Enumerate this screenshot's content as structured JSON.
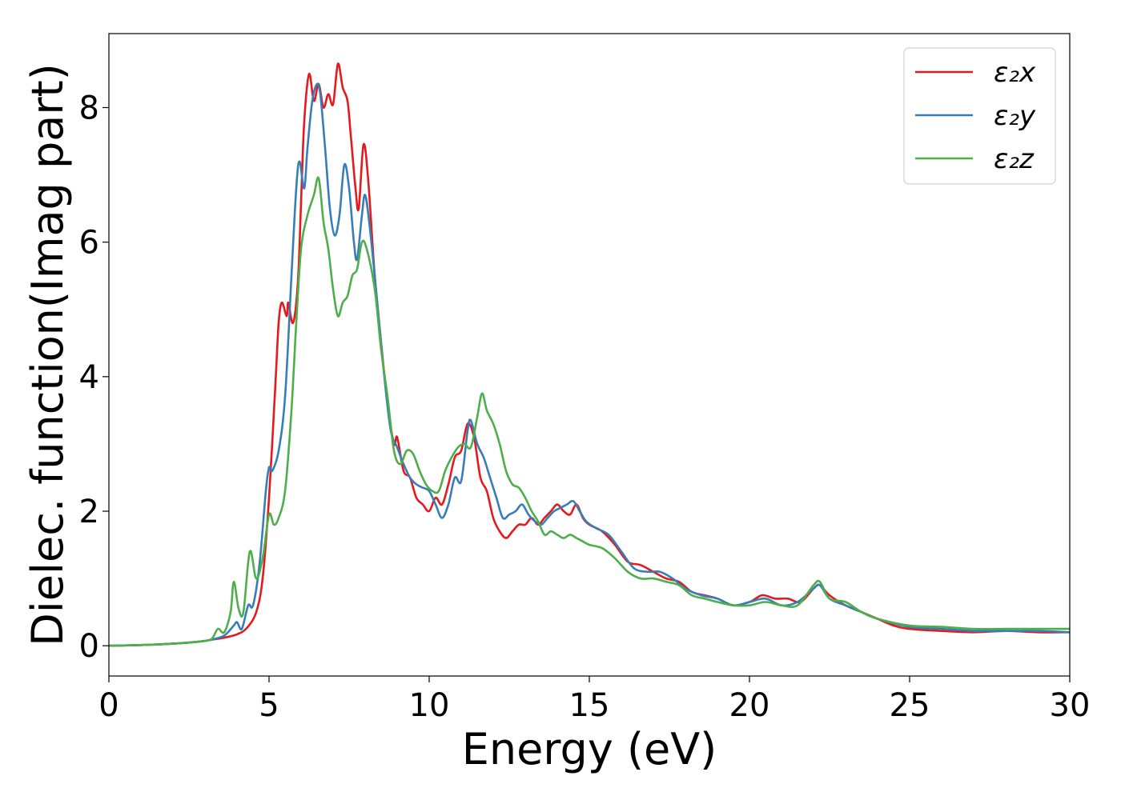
{
  "chart_data": {
    "type": "line",
    "title": "",
    "xlabel": "Energy (eV)",
    "ylabel": "Dielec. function(Imag part)",
    "xlim": [
      0,
      30
    ],
    "ylim": [
      -0.45,
      9.1
    ],
    "xticks": [
      0,
      5,
      10,
      15,
      20,
      25,
      30
    ],
    "yticks": [
      0,
      2,
      4,
      6,
      8
    ],
    "grid": false,
    "legend_position": "top-right",
    "series": [
      {
        "name": "ε₂x",
        "color": "#e41a1c",
        "points": [
          [
            0,
            0.0
          ],
          [
            1,
            0.01
          ],
          [
            2,
            0.03
          ],
          [
            2.8,
            0.06
          ],
          [
            3.2,
            0.09
          ],
          [
            3.6,
            0.12
          ],
          [
            4.0,
            0.17
          ],
          [
            4.3,
            0.26
          ],
          [
            4.6,
            0.5
          ],
          [
            4.8,
            1.0
          ],
          [
            5.0,
            2.2
          ],
          [
            5.2,
            3.9
          ],
          [
            5.3,
            4.8
          ],
          [
            5.4,
            5.1
          ],
          [
            5.55,
            4.9
          ],
          [
            5.6,
            5.1
          ],
          [
            5.75,
            4.8
          ],
          [
            5.9,
            5.4
          ],
          [
            6.0,
            6.6
          ],
          [
            6.1,
            7.8
          ],
          [
            6.25,
            8.5
          ],
          [
            6.4,
            8.1
          ],
          [
            6.55,
            8.35
          ],
          [
            6.7,
            8.0
          ],
          [
            6.85,
            8.2
          ],
          [
            7.0,
            8.05
          ],
          [
            7.15,
            8.65
          ],
          [
            7.3,
            8.3
          ],
          [
            7.45,
            8.1
          ],
          [
            7.55,
            7.6
          ],
          [
            7.7,
            6.8
          ],
          [
            7.8,
            6.5
          ],
          [
            7.95,
            7.45
          ],
          [
            8.1,
            6.9
          ],
          [
            8.3,
            5.5
          ],
          [
            8.5,
            4.5
          ],
          [
            8.7,
            3.6
          ],
          [
            8.9,
            3.0
          ],
          [
            9.0,
            3.1
          ],
          [
            9.2,
            2.6
          ],
          [
            9.4,
            2.5
          ],
          [
            9.6,
            2.2
          ],
          [
            9.8,
            2.1
          ],
          [
            10.0,
            2.0
          ],
          [
            10.2,
            2.2
          ],
          [
            10.4,
            2.1
          ],
          [
            10.6,
            2.4
          ],
          [
            10.8,
            2.8
          ],
          [
            11.0,
            2.9
          ],
          [
            11.2,
            3.3
          ],
          [
            11.4,
            3.1
          ],
          [
            11.6,
            2.5
          ],
          [
            11.8,
            2.3
          ],
          [
            12.0,
            1.9
          ],
          [
            12.2,
            1.7
          ],
          [
            12.4,
            1.6
          ],
          [
            12.6,
            1.7
          ],
          [
            12.8,
            1.8
          ],
          [
            13.0,
            1.8
          ],
          [
            13.2,
            1.9
          ],
          [
            13.4,
            1.8
          ],
          [
            13.6,
            1.9
          ],
          [
            13.8,
            2.0
          ],
          [
            14.0,
            2.1
          ],
          [
            14.2,
            2.0
          ],
          [
            14.4,
            1.95
          ],
          [
            14.6,
            2.1
          ],
          [
            14.8,
            1.9
          ],
          [
            15.0,
            1.8
          ],
          [
            15.4,
            1.7
          ],
          [
            15.8,
            1.5
          ],
          [
            16.2,
            1.25
          ],
          [
            16.6,
            1.2
          ],
          [
            17.0,
            1.1
          ],
          [
            17.4,
            1.0
          ],
          [
            17.8,
            0.95
          ],
          [
            18.2,
            0.8
          ],
          [
            18.6,
            0.75
          ],
          [
            19.0,
            0.7
          ],
          [
            19.5,
            0.6
          ],
          [
            20.0,
            0.65
          ],
          [
            20.4,
            0.75
          ],
          [
            20.8,
            0.7
          ],
          [
            21.2,
            0.7
          ],
          [
            21.6,
            0.65
          ],
          [
            22.0,
            0.85
          ],
          [
            22.2,
            0.9
          ],
          [
            22.5,
            0.75
          ],
          [
            23.0,
            0.6
          ],
          [
            23.5,
            0.5
          ],
          [
            24.0,
            0.4
          ],
          [
            24.5,
            0.3
          ],
          [
            25.0,
            0.25
          ],
          [
            26.0,
            0.22
          ],
          [
            27.0,
            0.2
          ],
          [
            28.0,
            0.22
          ],
          [
            29.0,
            0.2
          ],
          [
            30.0,
            0.2
          ]
        ]
      },
      {
        "name": "ε₂y",
        "color": "#377eb8",
        "points": [
          [
            0,
            0.0
          ],
          [
            1,
            0.01
          ],
          [
            2,
            0.03
          ],
          [
            2.8,
            0.06
          ],
          [
            3.2,
            0.09
          ],
          [
            3.6,
            0.15
          ],
          [
            3.9,
            0.3
          ],
          [
            4.0,
            0.35
          ],
          [
            4.15,
            0.25
          ],
          [
            4.35,
            0.6
          ],
          [
            4.5,
            0.6
          ],
          [
            4.7,
            1.2
          ],
          [
            4.9,
            2.3
          ],
          [
            5.0,
            2.65
          ],
          [
            5.1,
            2.6
          ],
          [
            5.3,
            2.9
          ],
          [
            5.5,
            3.7
          ],
          [
            5.7,
            5.5
          ],
          [
            5.85,
            6.8
          ],
          [
            5.95,
            7.2
          ],
          [
            6.1,
            6.8
          ],
          [
            6.2,
            7.4
          ],
          [
            6.35,
            8.1
          ],
          [
            6.5,
            8.35
          ],
          [
            6.6,
            8.2
          ],
          [
            6.75,
            7.4
          ],
          [
            6.9,
            6.5
          ],
          [
            7.05,
            6.1
          ],
          [
            7.2,
            6.4
          ],
          [
            7.35,
            7.15
          ],
          [
            7.5,
            6.8
          ],
          [
            7.65,
            6.0
          ],
          [
            7.75,
            5.75
          ],
          [
            7.9,
            6.4
          ],
          [
            8.0,
            6.7
          ],
          [
            8.15,
            6.2
          ],
          [
            8.4,
            5.0
          ],
          [
            8.6,
            4.0
          ],
          [
            8.8,
            3.2
          ],
          [
            9.0,
            2.95
          ],
          [
            9.2,
            2.7
          ],
          [
            9.4,
            2.5
          ],
          [
            9.6,
            2.4
          ],
          [
            9.8,
            2.35
          ],
          [
            10.0,
            2.3
          ],
          [
            10.2,
            2.1
          ],
          [
            10.4,
            1.9
          ],
          [
            10.6,
            2.1
          ],
          [
            10.8,
            2.5
          ],
          [
            11.0,
            2.45
          ],
          [
            11.2,
            3.2
          ],
          [
            11.3,
            3.35
          ],
          [
            11.5,
            3.0
          ],
          [
            11.7,
            2.8
          ],
          [
            11.9,
            2.5
          ],
          [
            12.1,
            2.2
          ],
          [
            12.3,
            1.9
          ],
          [
            12.5,
            1.95
          ],
          [
            12.7,
            2.0
          ],
          [
            12.9,
            2.1
          ],
          [
            13.1,
            1.95
          ],
          [
            13.3,
            1.85
          ],
          [
            13.5,
            1.8
          ],
          [
            13.7,
            1.9
          ],
          [
            13.9,
            2.0
          ],
          [
            14.1,
            2.05
          ],
          [
            14.3,
            2.1
          ],
          [
            14.5,
            2.15
          ],
          [
            14.7,
            2.0
          ],
          [
            14.9,
            1.85
          ],
          [
            15.2,
            1.75
          ],
          [
            15.6,
            1.65
          ],
          [
            16.0,
            1.4
          ],
          [
            16.4,
            1.15
          ],
          [
            16.8,
            1.1
          ],
          [
            17.2,
            1.1
          ],
          [
            17.6,
            1.0
          ],
          [
            18.0,
            0.85
          ],
          [
            18.5,
            0.75
          ],
          [
            19.0,
            0.7
          ],
          [
            19.5,
            0.6
          ],
          [
            20.0,
            0.65
          ],
          [
            20.5,
            0.7
          ],
          [
            21.0,
            0.6
          ],
          [
            21.5,
            0.65
          ],
          [
            22.0,
            0.85
          ],
          [
            22.2,
            0.9
          ],
          [
            22.5,
            0.7
          ],
          [
            23.0,
            0.6
          ],
          [
            23.5,
            0.5
          ],
          [
            24.0,
            0.4
          ],
          [
            25.0,
            0.28
          ],
          [
            26.0,
            0.25
          ],
          [
            27.0,
            0.22
          ],
          [
            28.0,
            0.22
          ],
          [
            29.0,
            0.22
          ],
          [
            30.0,
            0.2
          ]
        ]
      },
      {
        "name": "ε₂z",
        "color": "#4daf4a",
        "points": [
          [
            0,
            0.0
          ],
          [
            1,
            0.01
          ],
          [
            2,
            0.03
          ],
          [
            2.8,
            0.06
          ],
          [
            3.2,
            0.1
          ],
          [
            3.4,
            0.25
          ],
          [
            3.6,
            0.2
          ],
          [
            3.8,
            0.5
          ],
          [
            3.9,
            0.95
          ],
          [
            4.05,
            0.55
          ],
          [
            4.2,
            0.5
          ],
          [
            4.4,
            1.4
          ],
          [
            4.6,
            1.0
          ],
          [
            4.8,
            1.3
          ],
          [
            5.0,
            1.95
          ],
          [
            5.15,
            1.8
          ],
          [
            5.3,
            1.9
          ],
          [
            5.5,
            2.3
          ],
          [
            5.7,
            3.5
          ],
          [
            5.85,
            4.8
          ],
          [
            6.0,
            5.9
          ],
          [
            6.2,
            6.4
          ],
          [
            6.4,
            6.7
          ],
          [
            6.55,
            6.95
          ],
          [
            6.7,
            6.3
          ],
          [
            6.85,
            5.9
          ],
          [
            7.0,
            5.3
          ],
          [
            7.15,
            4.9
          ],
          [
            7.3,
            5.1
          ],
          [
            7.45,
            5.2
          ],
          [
            7.6,
            5.5
          ],
          [
            7.75,
            5.6
          ],
          [
            7.9,
            6.0
          ],
          [
            8.05,
            5.9
          ],
          [
            8.3,
            5.3
          ],
          [
            8.5,
            4.4
          ],
          [
            8.7,
            3.7
          ],
          [
            8.9,
            2.9
          ],
          [
            9.1,
            2.7
          ],
          [
            9.3,
            2.9
          ],
          [
            9.5,
            2.85
          ],
          [
            9.7,
            2.6
          ],
          [
            9.9,
            2.4
          ],
          [
            10.1,
            2.3
          ],
          [
            10.3,
            2.3
          ],
          [
            10.5,
            2.6
          ],
          [
            10.7,
            2.8
          ],
          [
            10.9,
            2.95
          ],
          [
            11.1,
            3.0
          ],
          [
            11.3,
            2.95
          ],
          [
            11.5,
            3.4
          ],
          [
            11.65,
            3.75
          ],
          [
            11.8,
            3.5
          ],
          [
            12.0,
            3.3
          ],
          [
            12.2,
            3.0
          ],
          [
            12.4,
            2.6
          ],
          [
            12.6,
            2.4
          ],
          [
            12.8,
            2.35
          ],
          [
            13.0,
            2.2
          ],
          [
            13.2,
            2.0
          ],
          [
            13.4,
            1.85
          ],
          [
            13.6,
            1.65
          ],
          [
            13.8,
            1.7
          ],
          [
            14.0,
            1.65
          ],
          [
            14.2,
            1.6
          ],
          [
            14.4,
            1.65
          ],
          [
            14.6,
            1.6
          ],
          [
            14.8,
            1.55
          ],
          [
            15.0,
            1.5
          ],
          [
            15.4,
            1.45
          ],
          [
            15.8,
            1.3
          ],
          [
            16.2,
            1.1
          ],
          [
            16.6,
            1.0
          ],
          [
            17.0,
            1.0
          ],
          [
            17.4,
            0.95
          ],
          [
            17.8,
            0.9
          ],
          [
            18.2,
            0.75
          ],
          [
            18.6,
            0.7
          ],
          [
            19.0,
            0.65
          ],
          [
            19.5,
            0.6
          ],
          [
            20.0,
            0.6
          ],
          [
            20.5,
            0.65
          ],
          [
            21.0,
            0.6
          ],
          [
            21.5,
            0.6
          ],
          [
            22.0,
            0.9
          ],
          [
            22.2,
            0.95
          ],
          [
            22.5,
            0.7
          ],
          [
            23.0,
            0.65
          ],
          [
            23.5,
            0.5
          ],
          [
            24.0,
            0.4
          ],
          [
            25.0,
            0.3
          ],
          [
            26.0,
            0.28
          ],
          [
            27.0,
            0.25
          ],
          [
            28.0,
            0.25
          ],
          [
            29.0,
            0.25
          ],
          [
            30.0,
            0.25
          ]
        ]
      }
    ]
  }
}
